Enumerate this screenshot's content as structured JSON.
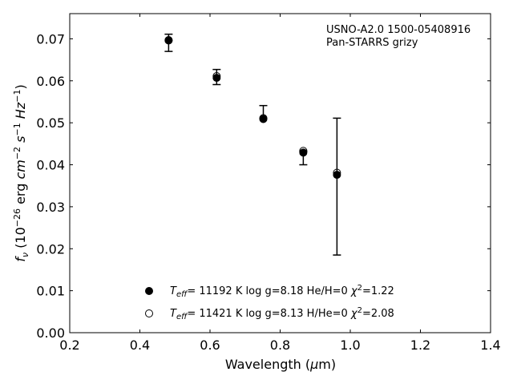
{
  "chart_data": {
    "type": "scatter",
    "title": "",
    "annotation": [
      "USNO-A2.0 1500-05408916",
      "Pan-STARRS grizy"
    ],
    "xlabel": "Wavelength (μm)",
    "ylabel": "f_ν (10^-26 erg cm^-2 s^-1 Hz^-1)",
    "xlim": [
      0.2,
      1.4
    ],
    "ylim": [
      0.0,
      0.076
    ],
    "xticks": [
      0.2,
      0.4,
      0.6,
      0.8,
      1.0,
      1.2,
      1.4
    ],
    "xtick_labels": [
      "0.2",
      "0.4",
      "0.6",
      "0.8",
      "1.0",
      "1.2",
      "1.4"
    ],
    "yticks": [
      0.0,
      0.01,
      0.02,
      0.03,
      0.04,
      0.05,
      0.06,
      0.07
    ],
    "ytick_labels": [
      "0.00",
      "0.01",
      "0.02",
      "0.03",
      "0.04",
      "0.05",
      "0.06",
      "0.07"
    ],
    "grid": false,
    "legend_position": "bottom-center",
    "observed": {
      "x": [
        0.482,
        0.619,
        0.752,
        0.866,
        0.962
      ],
      "y_low": [
        0.067,
        0.0591,
        0.051,
        0.04,
        0.0185
      ],
      "y_high": [
        0.0711,
        0.0627,
        0.0541,
        0.0432,
        0.0511
      ]
    },
    "series": [
      {
        "name": "T_eff= 11192 K  log g=8.18  He/H=0  χ²=1.22",
        "marker": "filled",
        "x": [
          0.482,
          0.619,
          0.752,
          0.866,
          0.962
        ],
        "y": [
          0.0696,
          0.0607,
          0.0509,
          0.0429,
          0.0376
        ]
      },
      {
        "name": "T_eff= 11421 K  log g=8.13  H/He=0  χ²=2.08",
        "marker": "open",
        "x": [
          0.482,
          0.619,
          0.752,
          0.866,
          0.962
        ],
        "y": [
          0.0697,
          0.0611,
          0.0511,
          0.0433,
          0.0381
        ]
      }
    ]
  }
}
